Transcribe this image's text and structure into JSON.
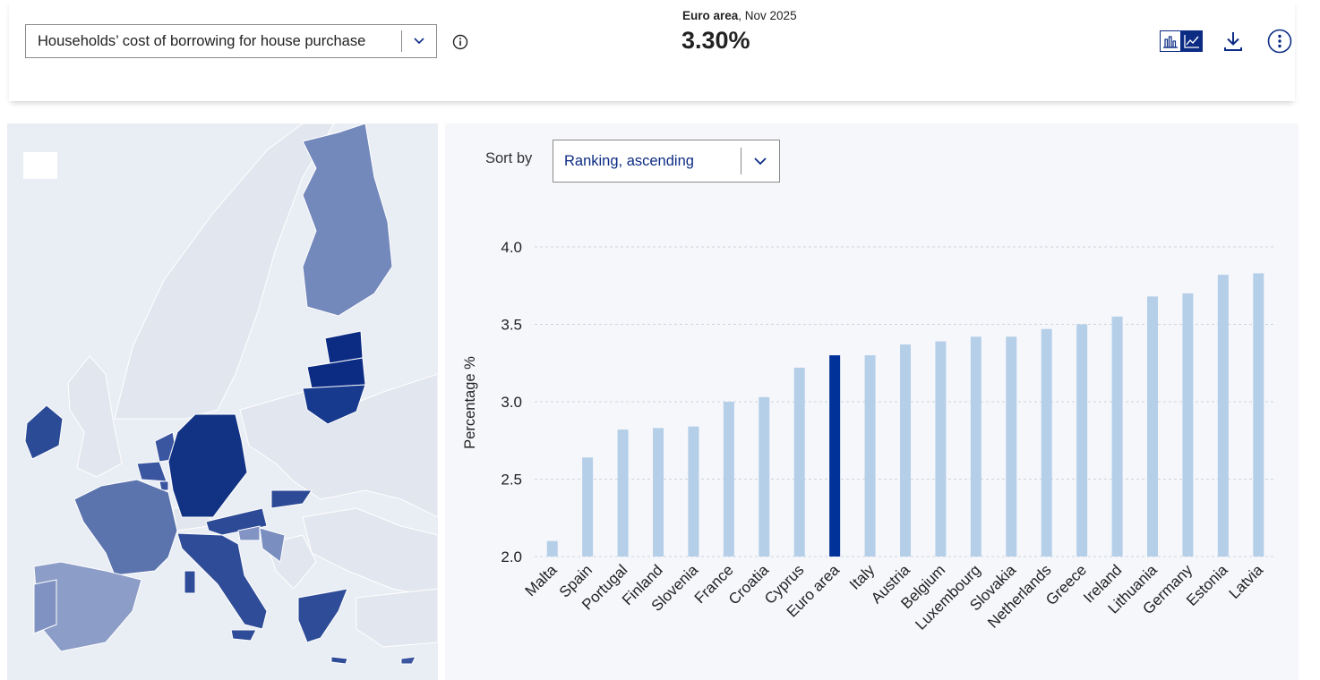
{
  "header": {
    "indicator_select": "Households’ cost of borrowing for house purchase",
    "headline_area": "Euro area",
    "headline_period": ", Nov 2025",
    "headline_value": "3.30%"
  },
  "sort": {
    "label": "Sort by",
    "value": "Ranking, ascending"
  },
  "colors": {
    "bar": "#b5cfe8",
    "highlight_bar": "#003299",
    "map_bg": "#e9edf4",
    "map_land": "#e2e6ee",
    "map_dark": "#0c2c84"
  },
  "icons": [
    "chevron-down-icon",
    "info-icon",
    "bar-chart-icon",
    "line-chart-icon",
    "download-icon",
    "more-icon"
  ],
  "chart_data": {
    "type": "bar",
    "ylabel": "Percentage %",
    "ylim": [
      2.0,
      4.0
    ],
    "yticks": [
      "2.0",
      "2.5",
      "3.0",
      "3.5",
      "4.0"
    ],
    "grid": true,
    "categories": [
      "Malta",
      "Spain",
      "Portugal",
      "Finland",
      "Slovenia",
      "France",
      "Croatia",
      "Cyprus",
      "Euro area",
      "Italy",
      "Austria",
      "Belgium",
      "Luxembourg",
      "Slovakia",
      "Netherlands",
      "Greece",
      "Ireland",
      "Lithuania",
      "Germany",
      "Estonia",
      "Latvia"
    ],
    "values": [
      2.1,
      2.64,
      2.82,
      2.83,
      2.84,
      3.0,
      3.03,
      3.22,
      3.3,
      3.3,
      3.37,
      3.39,
      3.42,
      3.42,
      3.47,
      3.5,
      3.55,
      3.68,
      3.7,
      3.82,
      3.83
    ],
    "highlight": "Euro area"
  }
}
